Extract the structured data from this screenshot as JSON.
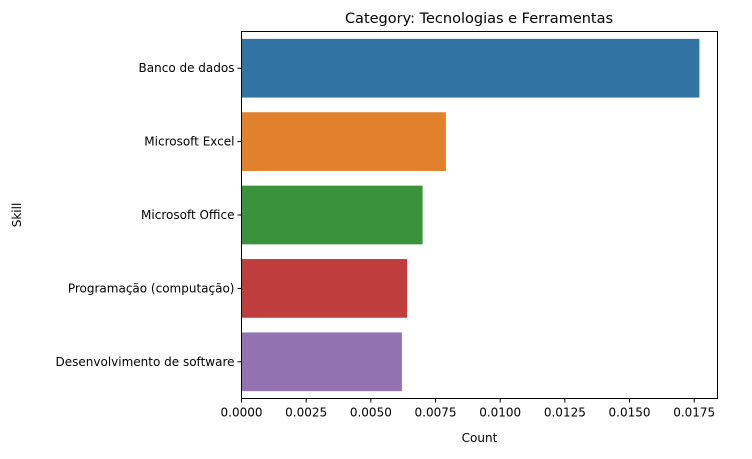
{
  "chart_data": {
    "type": "bar",
    "orientation": "horizontal",
    "title": "Category: Tecnologias e Ferramentas",
    "xlabel": "Count",
    "ylabel": "Skill",
    "categories": [
      "Banco de dados",
      "Microsoft Excel",
      "Microsoft Office",
      "Programação (computação)",
      "Desenvolvimento de software"
    ],
    "values": [
      0.0177,
      0.0079,
      0.007,
      0.0064,
      0.0062
    ],
    "colors": [
      "#3274a1",
      "#e1812c",
      "#3a923a",
      "#c03d3e",
      "#9372b2"
    ],
    "xlim": [
      0,
      0.0184
    ],
    "xticks": [
      0.0,
      0.0025,
      0.005,
      0.0075,
      0.01,
      0.0125,
      0.015,
      0.0175
    ],
    "xtick_labels": [
      "0.0000",
      "0.0025",
      "0.0050",
      "0.0075",
      "0.0100",
      "0.0125",
      "0.0150",
      "0.0175"
    ],
    "grid": false,
    "legend": "none"
  }
}
